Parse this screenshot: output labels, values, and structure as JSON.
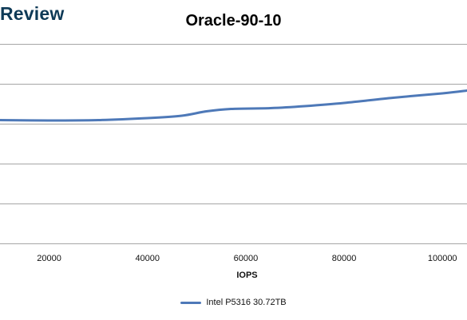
{
  "brand": {
    "logo_text": "Review"
  },
  "chart_data": {
    "type": "line",
    "title": "Oracle-90-10",
    "xlabel": "IOPS",
    "ylabel": "",
    "x_ticks": [
      20000,
      40000,
      60000,
      80000,
      100000
    ],
    "xlim": [
      10000,
      105000
    ],
    "ylim": [
      0,
      5
    ],
    "y_gridlines": [
      1,
      2,
      3,
      4,
      5
    ],
    "y_tick_labels_visible": false,
    "grid": true,
    "legend_position": "bottom",
    "series": [
      {
        "name": "Intel P5316 30.72TB",
        "color": "#4e79b8",
        "points": [
          {
            "x": 10000,
            "y": 3.09
          },
          {
            "x": 20000,
            "y": 3.08
          },
          {
            "x": 30000,
            "y": 3.09
          },
          {
            "x": 40000,
            "y": 3.14
          },
          {
            "x": 47000,
            "y": 3.2
          },
          {
            "x": 52000,
            "y": 3.31
          },
          {
            "x": 57000,
            "y": 3.37
          },
          {
            "x": 65000,
            "y": 3.39
          },
          {
            "x": 72000,
            "y": 3.44
          },
          {
            "x": 80000,
            "y": 3.52
          },
          {
            "x": 90000,
            "y": 3.65
          },
          {
            "x": 100000,
            "y": 3.76
          },
          {
            "x": 105000,
            "y": 3.83
          }
        ]
      }
    ]
  }
}
